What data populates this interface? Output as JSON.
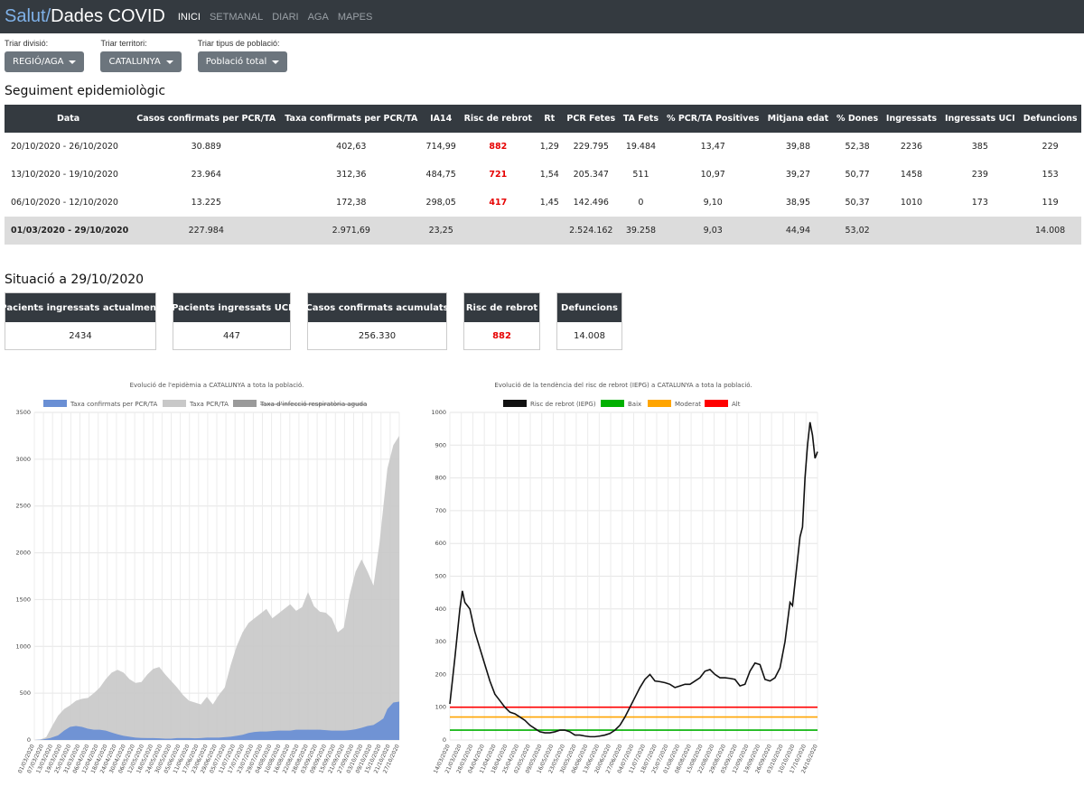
{
  "navbar": {
    "brand_part1": "Salut/",
    "brand_part2": "Dades COVID",
    "items": [
      "INICI",
      "SETMANAL",
      "DIARI",
      "AGA",
      "MAPES"
    ]
  },
  "filters": [
    {
      "label": "Triar divisió:",
      "value": "REGIÓ/AGA"
    },
    {
      "label": "Triar territori:",
      "value": "CATALUNYA"
    },
    {
      "label": "Triar tipus de població:",
      "value": "Població total"
    }
  ],
  "section1_title": "Seguiment epidemiològic",
  "table": {
    "headers": [
      "Data",
      "Casos confirmats per PCR/TA",
      "Taxa confirmats per PCR/TA",
      "IA14",
      "Risc de rebrot",
      "Rt",
      "PCR Fetes",
      "TA Fets",
      "% PCR/TA Positives",
      "Mitjana edat",
      "% Dones",
      "Ingressats",
      "Ingressats UCI",
      "Defuncions"
    ],
    "rows": [
      [
        "20/10/2020 - 26/10/2020",
        "30.889",
        "402,63",
        "714,99",
        "882",
        "1,29",
        "229.795",
        "19.484",
        "13,47",
        "39,88",
        "52,38",
        "2236",
        "385",
        "229"
      ],
      [
        "13/10/2020 - 19/10/2020",
        "23.964",
        "312,36",
        "484,75",
        "721",
        "1,54",
        "205.347",
        "511",
        "10,97",
        "39,27",
        "50,77",
        "1458",
        "239",
        "153"
      ],
      [
        "06/10/2020 - 12/10/2020",
        "13.225",
        "172,38",
        "298,05",
        "417",
        "1,45",
        "142.496",
        "0",
        "9,10",
        "38,95",
        "50,37",
        "1010",
        "173",
        "119"
      ]
    ],
    "total": [
      "01/03/2020 - 29/10/2020",
      "227.984",
      "2.971,69",
      "23,25",
      "",
      "",
      "2.524.162",
      "39.258",
      "9,03",
      "44,94",
      "53,02",
      "",
      "",
      "14.008"
    ]
  },
  "section2_title": "Situació a 29/10/2020",
  "cards": [
    {
      "title": "Pacients ingressats actualment",
      "value": "2434"
    },
    {
      "title": "Pacients ingressats UCI",
      "value": "447"
    },
    {
      "title": "Casos confirmats acumulats",
      "value": "256.330"
    },
    {
      "title": "Risc de rebrot",
      "value": "882"
    },
    {
      "title": "Defuncions",
      "value": "14.008"
    }
  ],
  "colors": {
    "navbar": "#343a40",
    "brand_accent": "#7fb1e8",
    "risk_red": "#e60000"
  },
  "chart_data": [
    {
      "type": "area",
      "title": "Evolució de l'epidèmia a CATALUNYA a tota la població.",
      "legend": [
        "Taxa confirmats per PCR/TA",
        "Taxa PCR/TA",
        "Taxa d'infecció respiratòria aguda"
      ],
      "ylim": [
        0,
        3500
      ],
      "yticks": [
        "0",
        "500",
        "1000",
        "1500",
        "2000",
        "2500",
        "3000",
        "3500"
      ],
      "xticks": [
        "01/03/2020",
        "07/03/2020",
        "13/03/2020",
        "19/03/2020",
        "25/03/2020",
        "31/03/2020",
        "06/04/2020",
        "12/04/2020",
        "18/04/2020",
        "24/04/2020",
        "30/04/2020",
        "06/05/2020",
        "12/05/2020",
        "18/05/2020",
        "24/05/2020",
        "30/05/2020",
        "05/06/2020",
        "11/06/2020",
        "17/06/2020",
        "23/06/2020",
        "29/06/2020",
        "05/07/2020",
        "11/07/2020",
        "17/07/2020",
        "23/07/2020",
        "29/07/2020",
        "04/08/2020",
        "10/08/2020",
        "16/08/2020",
        "22/08/2020",
        "28/08/2020",
        "03/09/2020",
        "09/09/2020",
        "15/09/2020",
        "21/09/2020",
        "27/09/2020",
        "03/10/2020",
        "09/10/2020",
        "15/10/2020",
        "21/10/2020",
        "27/10/2020"
      ],
      "series": [
        {
          "name": "Taxa PCR/TA",
          "color": "#c8c8c8",
          "points": [
            [
              0,
              0
            ],
            [
              3,
              5
            ],
            [
              6,
              30
            ],
            [
              9,
              150
            ],
            [
              12,
              260
            ],
            [
              15,
              330
            ],
            [
              18,
              370
            ],
            [
              21,
              420
            ],
            [
              24,
              440
            ],
            [
              27,
              450
            ],
            [
              30,
              500
            ],
            [
              33,
              560
            ],
            [
              36,
              650
            ],
            [
              39,
              720
            ],
            [
              42,
              750
            ],
            [
              45,
              720
            ],
            [
              48,
              650
            ],
            [
              51,
              610
            ],
            [
              54,
              620
            ],
            [
              57,
              700
            ],
            [
              60,
              760
            ],
            [
              63,
              780
            ],
            [
              66,
              700
            ],
            [
              69,
              630
            ],
            [
              72,
              560
            ],
            [
              75,
              480
            ],
            [
              78,
              420
            ],
            [
              81,
              400
            ],
            [
              84,
              380
            ],
            [
              87,
              460
            ],
            [
              90,
              380
            ],
            [
              93,
              480
            ],
            [
              96,
              560
            ],
            [
              99,
              800
            ],
            [
              102,
              1000
            ],
            [
              105,
              1150
            ],
            [
              108,
              1250
            ],
            [
              111,
              1300
            ],
            [
              114,
              1350
            ],
            [
              117,
              1400
            ],
            [
              120,
              1300
            ],
            [
              123,
              1350
            ],
            [
              126,
              1400
            ],
            [
              129,
              1450
            ],
            [
              132,
              1380
            ],
            [
              135,
              1420
            ],
            [
              138,
              1580
            ],
            [
              141,
              1430
            ],
            [
              144,
              1370
            ],
            [
              147,
              1360
            ],
            [
              150,
              1300
            ],
            [
              153,
              1150
            ],
            [
              156,
              1200
            ],
            [
              159,
              1550
            ],
            [
              162,
              1800
            ],
            [
              165,
              1930
            ],
            [
              168,
              1800
            ],
            [
              171,
              1650
            ],
            [
              174,
              2100
            ],
            [
              176,
              2500
            ],
            [
              178,
              2900
            ],
            [
              181,
              3150
            ],
            [
              184,
              3250
            ]
          ]
        },
        {
          "name": "Taxa confirmats per PCR/TA",
          "color": "#6a8fd4",
          "points": [
            [
              0,
              0
            ],
            [
              4,
              5
            ],
            [
              8,
              20
            ],
            [
              12,
              50
            ],
            [
              15,
              100
            ],
            [
              18,
              140
            ],
            [
              21,
              150
            ],
            [
              24,
              140
            ],
            [
              27,
              120
            ],
            [
              30,
              110
            ],
            [
              33,
              110
            ],
            [
              36,
              100
            ],
            [
              39,
              80
            ],
            [
              42,
              60
            ],
            [
              45,
              45
            ],
            [
              48,
              35
            ],
            [
              51,
              25
            ],
            [
              54,
              22
            ],
            [
              57,
              20
            ],
            [
              60,
              20
            ],
            [
              63,
              18
            ],
            [
              66,
              15
            ],
            [
              69,
              15
            ],
            [
              72,
              20
            ],
            [
              75,
              20
            ],
            [
              78,
              20
            ],
            [
              81,
              18
            ],
            [
              84,
              20
            ],
            [
              87,
              25
            ],
            [
              90,
              25
            ],
            [
              93,
              25
            ],
            [
              96,
              30
            ],
            [
              99,
              35
            ],
            [
              102,
              45
            ],
            [
              105,
              55
            ],
            [
              108,
              75
            ],
            [
              111,
              85
            ],
            [
              114,
              90
            ],
            [
              117,
              90
            ],
            [
              120,
              95
            ],
            [
              123,
              100
            ],
            [
              126,
              100
            ],
            [
              129,
              100
            ],
            [
              132,
              110
            ],
            [
              135,
              110
            ],
            [
              138,
              110
            ],
            [
              141,
              110
            ],
            [
              144,
              110
            ],
            [
              147,
              105
            ],
            [
              150,
              100
            ],
            [
              153,
              100
            ],
            [
              156,
              100
            ],
            [
              159,
              105
            ],
            [
              162,
              115
            ],
            [
              165,
              130
            ],
            [
              168,
              150
            ],
            [
              171,
              160
            ],
            [
              174,
              200
            ],
            [
              176,
              230
            ],
            [
              178,
              330
            ],
            [
              181,
              400
            ],
            [
              184,
              410
            ]
          ]
        }
      ]
    },
    {
      "type": "line",
      "title": "Evolució de la tendència del risc de rebrot (IEPG) a CATALUNYA a tota la població.",
      "legend": [
        "Risc de rebrot (IEPG)",
        "Baix",
        "Moderat",
        "Alt"
      ],
      "ylim": [
        0,
        1000
      ],
      "yticks": [
        "0",
        "100",
        "200",
        "300",
        "400",
        "500",
        "600",
        "700",
        "800",
        "900",
        "1000"
      ],
      "xticks": [
        "14/03/2020",
        "21/03/2020",
        "28/03/2020",
        "04/04/2020",
        "11/04/2020",
        "18/04/2020",
        "25/04/2020",
        "02/05/2020",
        "09/05/2020",
        "16/05/2020",
        "23/05/2020",
        "30/05/2020",
        "06/06/2020",
        "13/06/2020",
        "20/06/2020",
        "27/06/2020",
        "04/07/2020",
        "11/07/2020",
        "18/07/2020",
        "25/07/2020",
        "01/08/2020",
        "08/08/2020",
        "15/08/2020",
        "22/08/2020",
        "29/08/2020",
        "05/09/2020",
        "12/09/2020",
        "19/09/2020",
        "26/09/2020",
        "03/10/2020",
        "10/10/2020",
        "17/10/2020",
        "24/10/2020"
      ],
      "thresholds": [
        {
          "name": "Baix",
          "value": 30,
          "color": "#00b000"
        },
        {
          "name": "Moderat",
          "value": 70,
          "color": "#ffa500"
        },
        {
          "name": "Alt",
          "value": 100,
          "color": "#ff0000"
        }
      ],
      "series": [
        {
          "name": "Risc de rebrot (IEPG)",
          "color": "#111111",
          "points": [
            [
              0,
              110
            ],
            [
              2,
              250
            ],
            [
              4,
              400
            ],
            [
              5,
              455
            ],
            [
              6,
              420
            ],
            [
              8,
              400
            ],
            [
              10,
              330
            ],
            [
              12,
              280
            ],
            [
              14,
              230
            ],
            [
              16,
              180
            ],
            [
              18,
              140
            ],
            [
              20,
              120
            ],
            [
              22,
              100
            ],
            [
              24,
              85
            ],
            [
              26,
              80
            ],
            [
              28,
              70
            ],
            [
              30,
              60
            ],
            [
              32,
              45
            ],
            [
              34,
              35
            ],
            [
              36,
              25
            ],
            [
              38,
              22
            ],
            [
              40,
              22
            ],
            [
              42,
              25
            ],
            [
              44,
              30
            ],
            [
              46,
              30
            ],
            [
              48,
              25
            ],
            [
              50,
              15
            ],
            [
              52,
              15
            ],
            [
              54,
              12
            ],
            [
              56,
              10
            ],
            [
              58,
              10
            ],
            [
              60,
              12
            ],
            [
              62,
              15
            ],
            [
              64,
              20
            ],
            [
              66,
              30
            ],
            [
              68,
              45
            ],
            [
              70,
              70
            ],
            [
              72,
              100
            ],
            [
              74,
              130
            ],
            [
              76,
              160
            ],
            [
              78,
              185
            ],
            [
              80,
              200
            ],
            [
              82,
              180
            ],
            [
              84,
              178
            ],
            [
              86,
              175
            ],
            [
              88,
              170
            ],
            [
              90,
              160
            ],
            [
              92,
              165
            ],
            [
              94,
              170
            ],
            [
              96,
              170
            ],
            [
              98,
              180
            ],
            [
              100,
              190
            ],
            [
              102,
              210
            ],
            [
              104,
              215
            ],
            [
              106,
              200
            ],
            [
              108,
              190
            ],
            [
              110,
              190
            ],
            [
              112,
              188
            ],
            [
              114,
              185
            ],
            [
              116,
              165
            ],
            [
              118,
              170
            ],
            [
              120,
              210
            ],
            [
              122,
              235
            ],
            [
              124,
              230
            ],
            [
              126,
              185
            ],
            [
              128,
              180
            ],
            [
              130,
              190
            ],
            [
              132,
              220
            ],
            [
              134,
              300
            ],
            [
              136,
              420
            ],
            [
              137,
              410
            ],
            [
              138,
              480
            ],
            [
              140,
              620
            ],
            [
              141,
              650
            ],
            [
              142,
              800
            ],
            [
              143,
              900
            ],
            [
              144,
              970
            ],
            [
              145,
              930
            ],
            [
              146,
              860
            ],
            [
              147,
              880
            ]
          ]
        }
      ]
    }
  ]
}
